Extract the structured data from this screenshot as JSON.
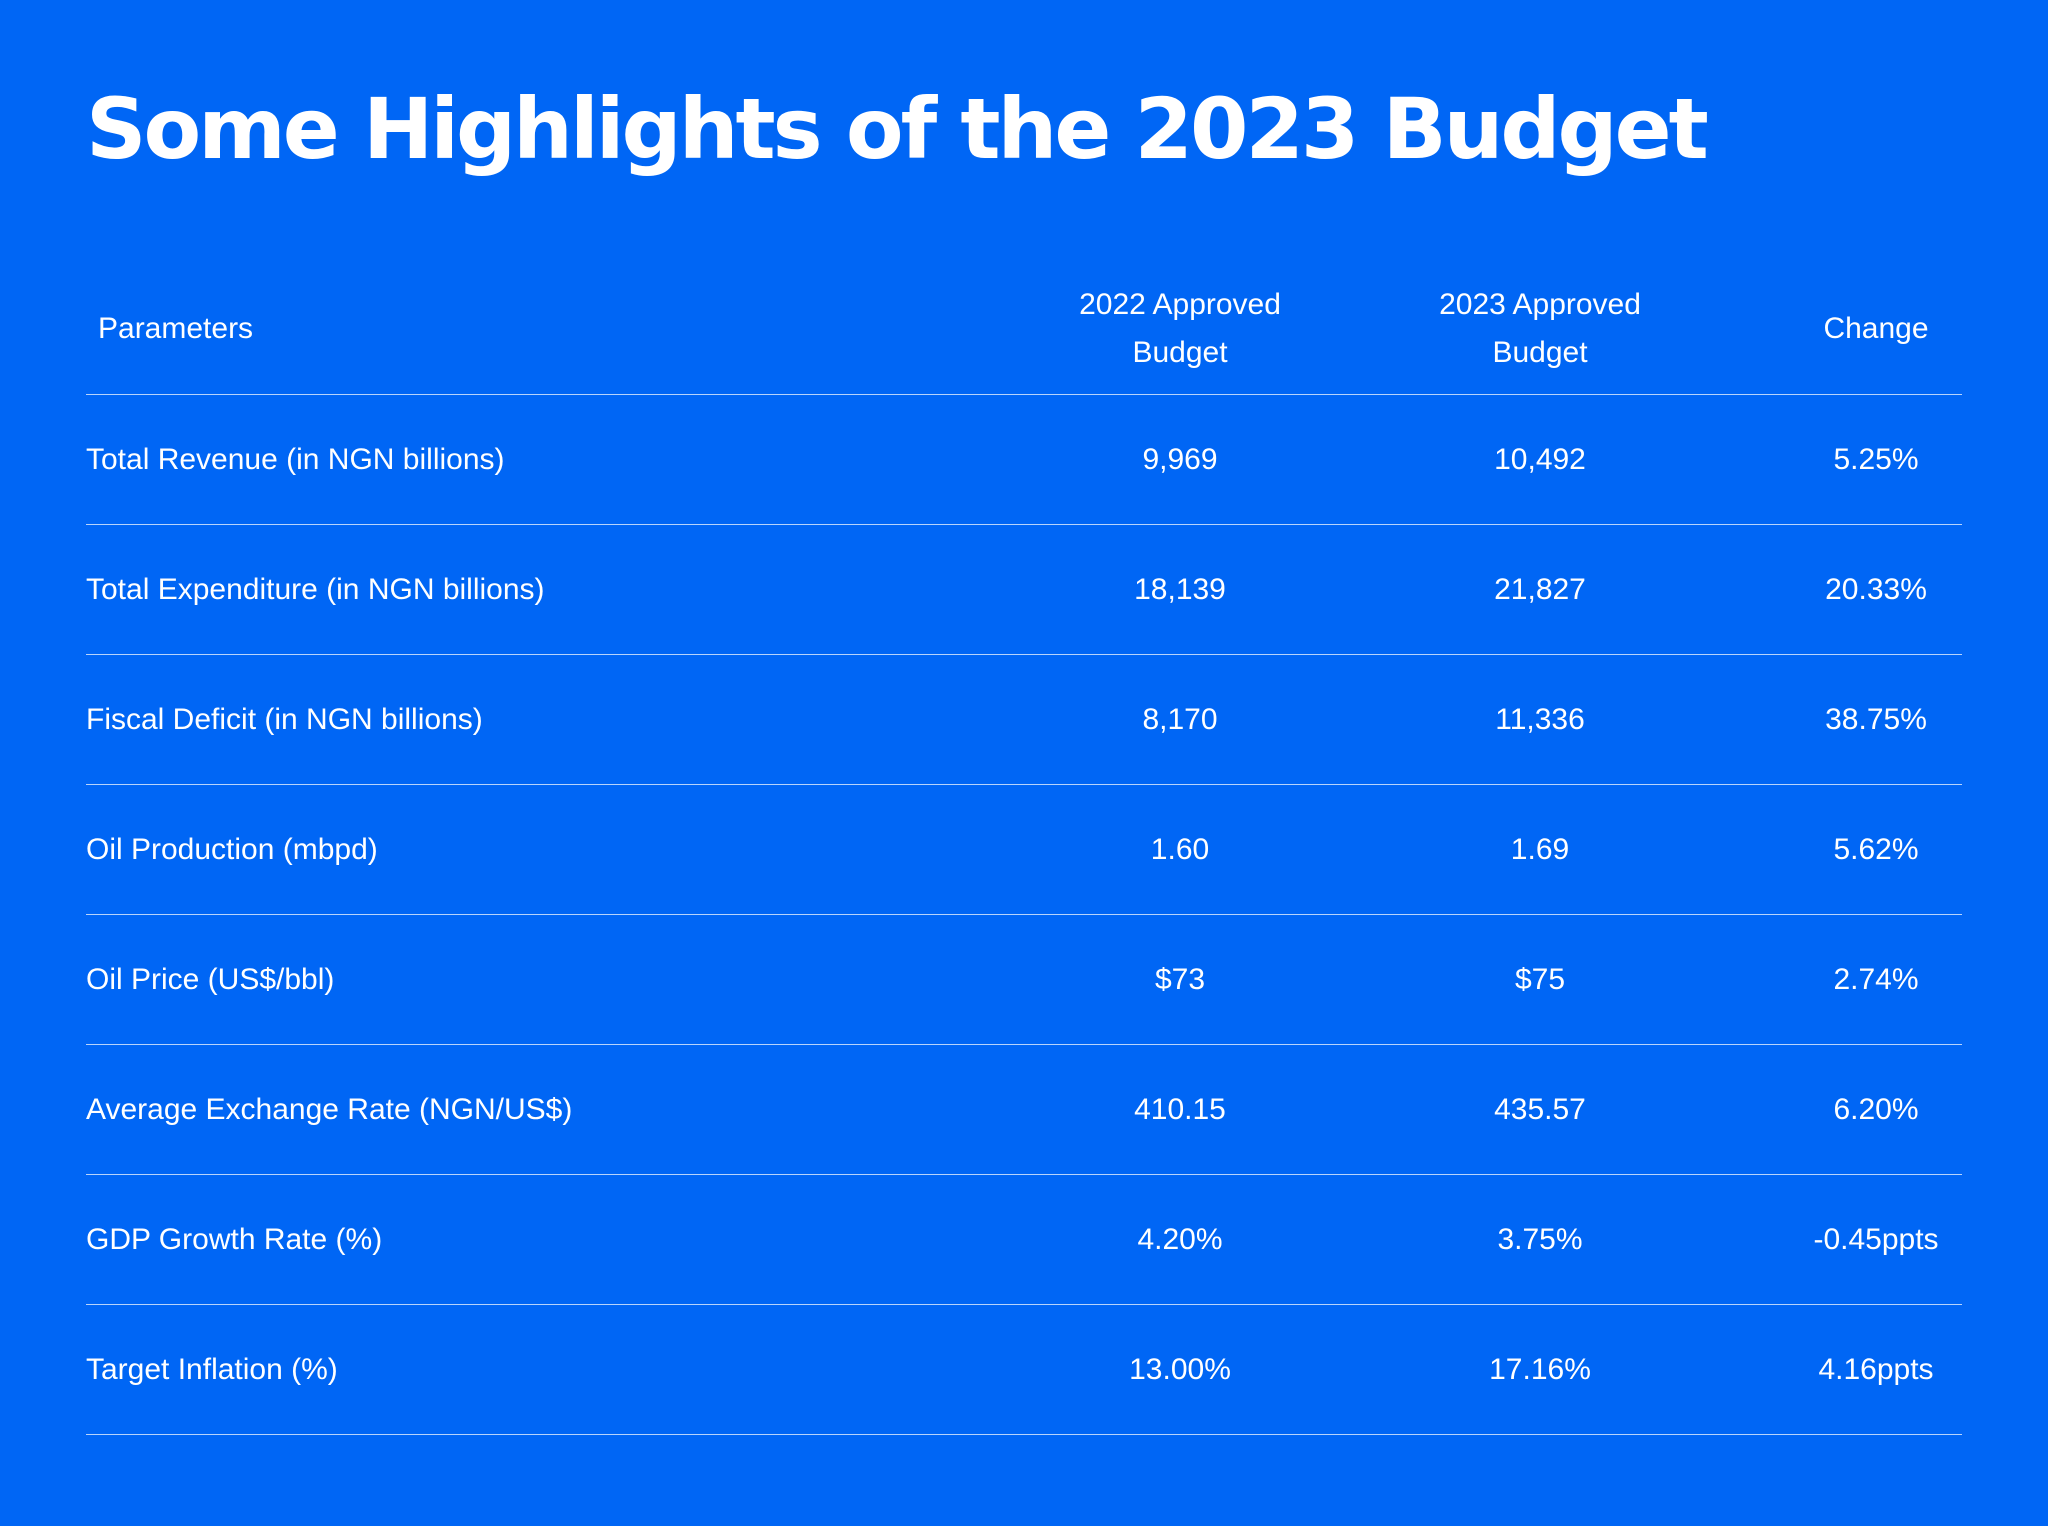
{
  "title": "Some Highlights of the 2023 Budget",
  "colors": {
    "background": "#0066F5",
    "text": "#FFFFFF",
    "rule": "#FFFFFF"
  },
  "chart_data": {
    "type": "table",
    "title": "Some Highlights of the 2023 Budget",
    "columns": [
      "Parameters",
      "2022 Approved Budget",
      "2023 Approved Budget",
      "Change"
    ],
    "rows": [
      [
        "Total Revenue (in NGN billions)",
        "9,969",
        "10,492",
        "5.25%"
      ],
      [
        "Total Expenditure (in NGN billions)",
        "18,139",
        "21,827",
        "20.33%"
      ],
      [
        "Fiscal Deficit (in NGN billions)",
        "8,170",
        "11,336",
        "38.75%"
      ],
      [
        "Oil Production (mbpd)",
        "1.60",
        "1.69",
        "5.62%"
      ],
      [
        "Oil Price (US$/bbl)",
        "$73",
        "$75",
        "2.74%"
      ],
      [
        "Average Exchange Rate (NGN/US$)",
        "410.15",
        "435.57",
        "6.20%"
      ],
      [
        "GDP Growth Rate (%)",
        "4.20%",
        "3.75%",
        "-0.45ppts"
      ],
      [
        "Target Inflation (%)",
        "13.00%",
        "17.16%",
        "4.16ppts"
      ]
    ]
  }
}
